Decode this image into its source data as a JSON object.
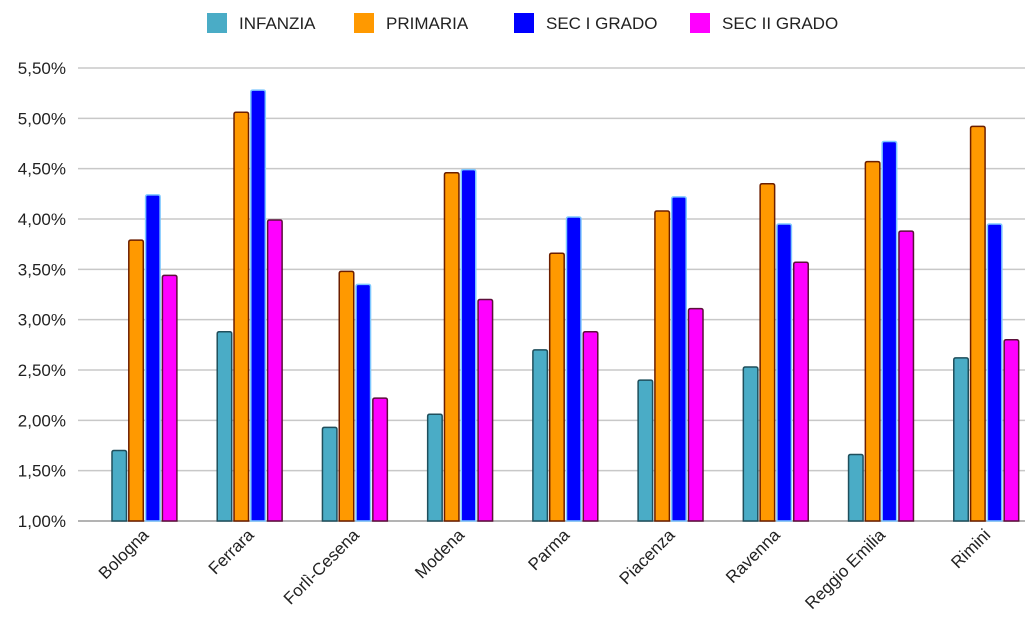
{
  "chart_data": {
    "type": "bar",
    "title": "",
    "xlabel": "",
    "ylabel": "",
    "categories": [
      "Bologna",
      "Ferrara",
      "Forlì-Cesena",
      "Modena",
      "Parma",
      "Piacenza",
      "Ravenna",
      "Reggio Emilia",
      "Rimini"
    ],
    "series": [
      {
        "name": "INFANZIA",
        "color": "#4aacc6",
        "stroke": "#1f4f5c",
        "values": [
          1.7,
          2.88,
          1.93,
          2.06,
          2.7,
          2.4,
          2.53,
          1.66,
          2.62
        ]
      },
      {
        "name": "PRIMARIA",
        "color": "#ff9900",
        "stroke": "#6b1e00",
        "values": [
          3.79,
          5.06,
          3.48,
          4.46,
          3.66,
          4.08,
          4.35,
          4.57,
          4.92
        ]
      },
      {
        "name": "SEC I GRADO",
        "color": "#0000ff",
        "stroke": "#7ec8ff",
        "values": [
          4.24,
          5.28,
          3.35,
          4.49,
          4.02,
          4.22,
          3.95,
          4.77,
          3.95
        ]
      },
      {
        "name": "SEC II GRADO",
        "color": "#ff00ff",
        "stroke": "#5c0f3a",
        "values": [
          3.44,
          3.99,
          2.22,
          3.2,
          2.88,
          3.11,
          3.57,
          3.88,
          2.8
        ]
      }
    ],
    "ylim": [
      1.0,
      5.5
    ],
    "yticks": [
      1.0,
      1.5,
      2.0,
      2.5,
      3.0,
      3.5,
      4.0,
      4.5,
      5.0,
      5.5
    ],
    "ytick_labels": [
      "1,00%",
      "1,50%",
      "2,00%",
      "2,50%",
      "3,00%",
      "3,50%",
      "4,00%",
      "4,50%",
      "5,00%",
      "5,50%"
    ],
    "grid": true,
    "legend_position": "top-center"
  }
}
